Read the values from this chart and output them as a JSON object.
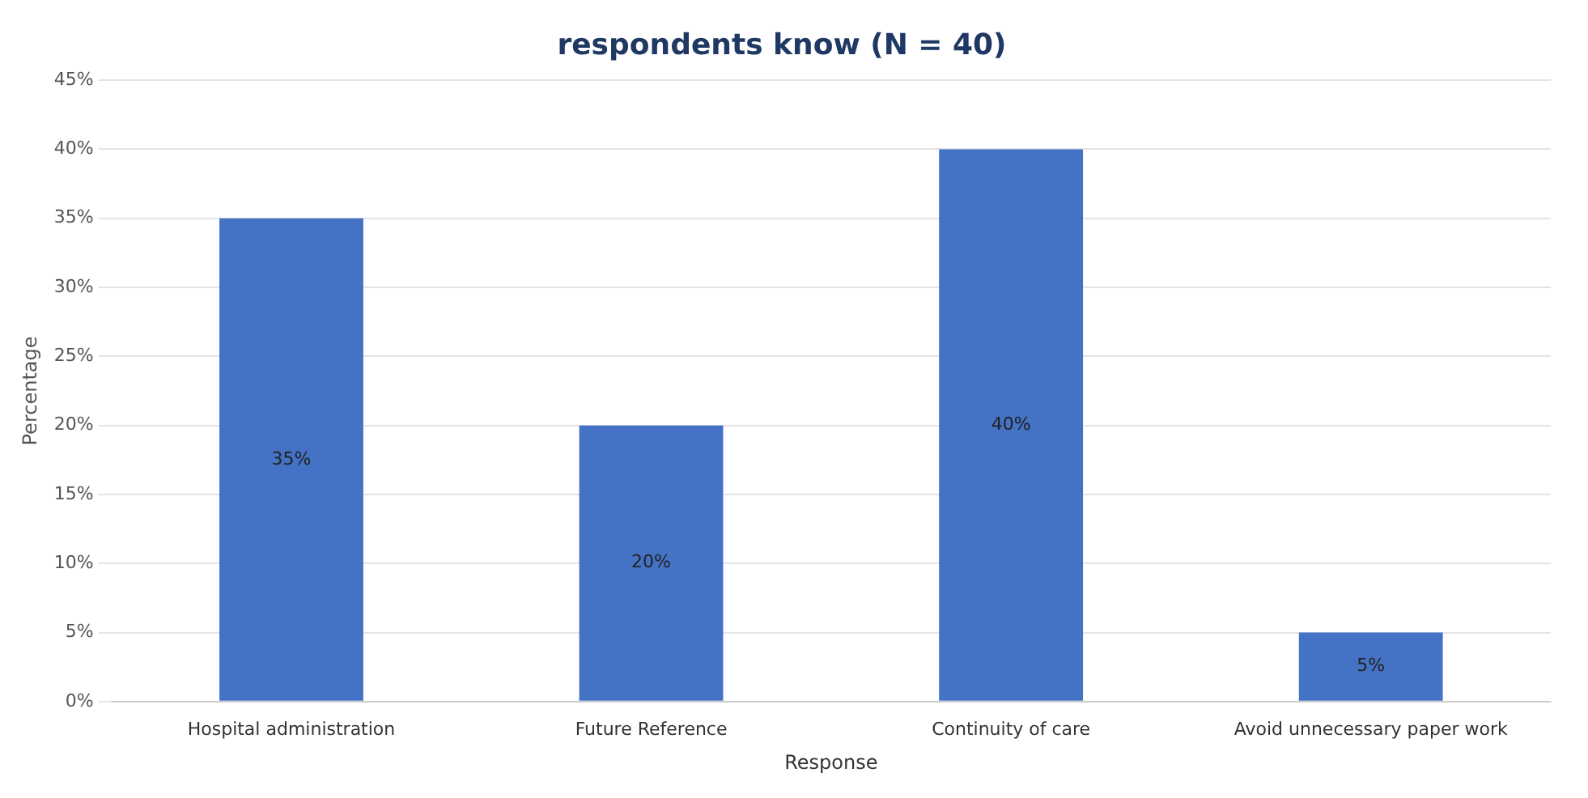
{
  "chart_data": {
    "type": "bar",
    "title": "respondents know (N = 40)",
    "xlabel": "Response",
    "ylabel": "Percentage",
    "categories": [
      "Hospital administration",
      "Future Reference",
      "Continuity of care",
      "Avoid unnecessary paper work"
    ],
    "values": [
      35,
      20,
      40,
      5
    ],
    "color": "#4472c4",
    "value_labels": [
      "35%",
      "20%",
      "40%",
      "5%"
    ],
    "ylim": [
      0,
      45
    ],
    "yticks": [
      {
        "value": 0,
        "label": "0%"
      },
      {
        "value": 5,
        "label": "5%"
      },
      {
        "value": 10,
        "label": "10%"
      },
      {
        "value": 15,
        "label": "15%"
      },
      {
        "value": 20,
        "label": "20%"
      },
      {
        "value": 25,
        "label": "25%"
      },
      {
        "value": 30,
        "label": "30%"
      },
      {
        "value": 35,
        "label": "35%"
      },
      {
        "value": 40,
        "label": "40%"
      },
      {
        "value": 45,
        "label": "45%"
      }
    ],
    "grid": "y"
  }
}
